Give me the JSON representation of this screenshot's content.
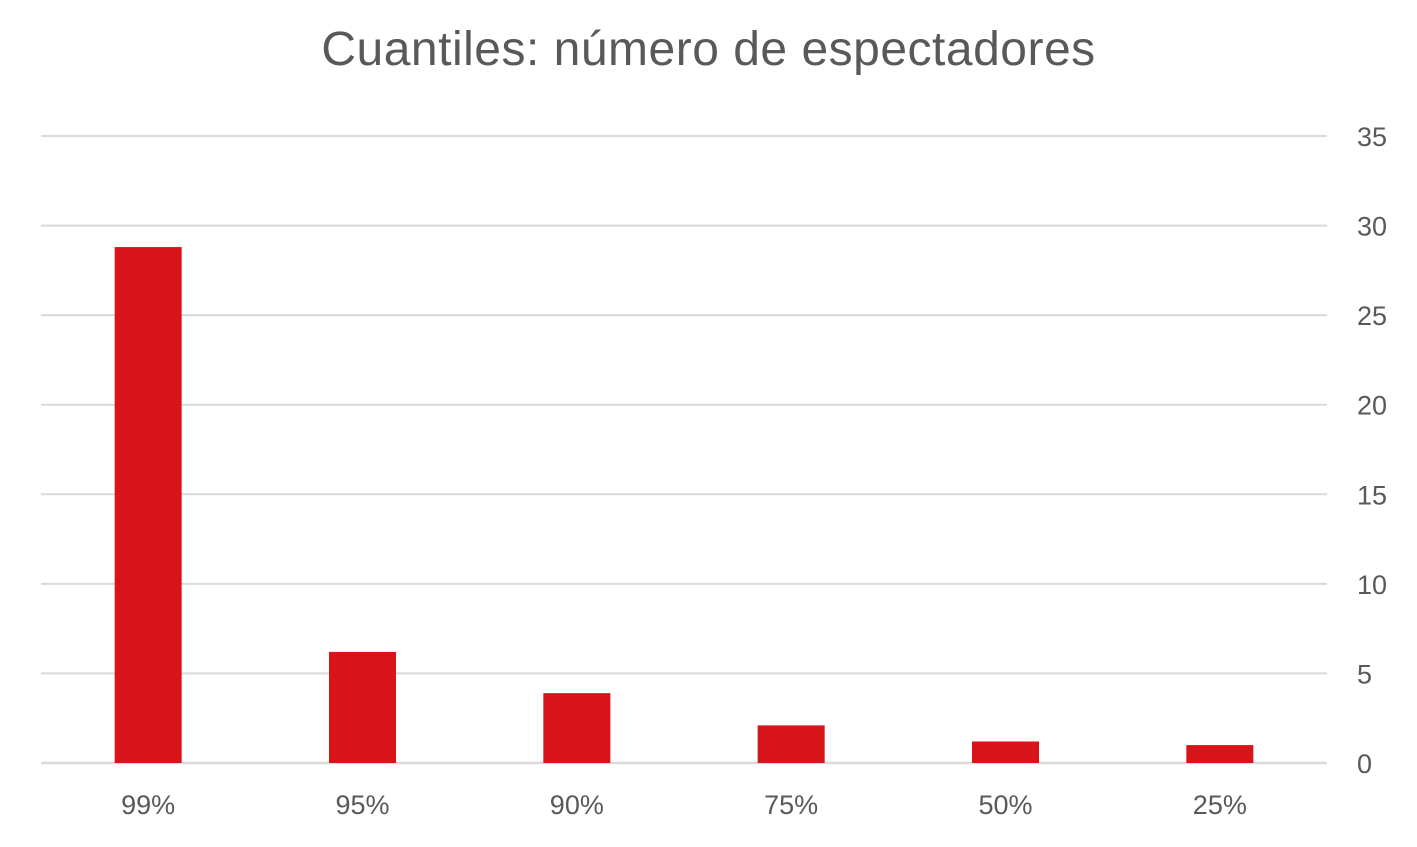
{
  "chart_data": {
    "type": "bar",
    "title": "Cuantiles: número de espectadores",
    "categories": [
      "99%",
      "95%",
      "90%",
      "75%",
      "50%",
      "25%"
    ],
    "values": [
      28.8,
      6.2,
      3.9,
      2.1,
      1.2,
      1.0
    ],
    "ylim": [
      0,
      35
    ],
    "yticks": [
      0,
      5,
      10,
      15,
      20,
      25,
      30,
      35
    ],
    "y_axis_position": "right",
    "grid": true,
    "legend": "none",
    "bar_color": "#d7141a",
    "grid_color": "#d9d9d9"
  }
}
